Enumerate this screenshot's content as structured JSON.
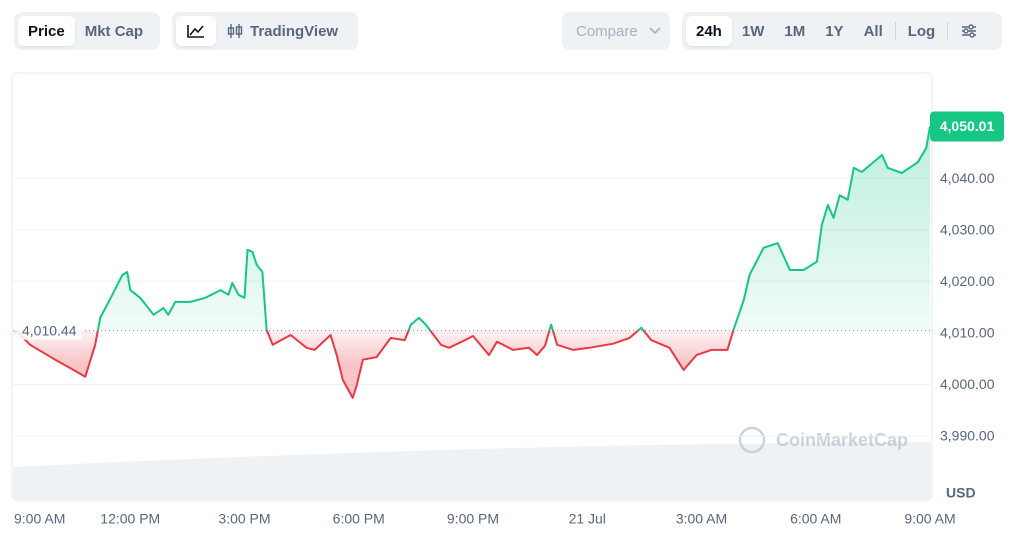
{
  "toolbar": {
    "price": "Price",
    "mkt_cap": "Mkt Cap",
    "tradingview": "TradingView",
    "compare": "Compare",
    "ranges": [
      "24h",
      "1W",
      "1M",
      "1Y",
      "All"
    ],
    "log": "Log"
  },
  "chart_data": {
    "type": "line",
    "watermark": "CoinMarketCap",
    "y_unit": "USD",
    "up_color": "#16c784",
    "down_color": "#ea3943",
    "baseline": {
      "value": 4010.44,
      "label": "4,010.44"
    },
    "last": {
      "value": 4050.01,
      "label": "4,050.01"
    },
    "x": [
      0,
      0.37,
      1.03,
      1.42,
      1.82,
      2.08,
      2.21,
      2.53,
      2.79,
      2.92,
      3.0,
      3.26,
      3.61,
      3.87,
      4.0,
      4.18,
      4.58,
      4.97,
      5.37,
      5.58,
      5.68,
      5.84,
      6.0,
      6.08,
      6.21,
      6.32,
      6.47,
      6.58,
      6.74,
      7.21,
      7.63,
      7.84,
      8.26,
      8.42,
      8.58,
      8.84,
      8.95,
      9.11,
      9.47,
      9.84,
      10.21,
      10.37,
      10.58,
      10.76,
      11.16,
      11.37,
      11.79,
      12.0,
      12.42,
      12.63,
      13.05,
      13.47,
      13.68,
      13.89,
      14.05,
      14.21,
      14.63,
      15.05,
      15.68,
      16.11,
      16.42,
      16.68,
      17.16,
      17.53,
      17.87,
      18.26,
      18.68,
      18.84,
      19.11,
      19.26,
      19.63,
      20.0,
      20.32,
      20.68,
      21.03,
      21.16,
      21.32,
      21.47,
      21.63,
      21.84,
      22.0,
      22.21,
      22.58,
      22.74,
      22.89,
      23.26,
      23.68,
      23.9,
      24
    ],
    "values": [
      4010.44,
      4007.7,
      4004.8,
      4003.2,
      4001.5,
      4007.7,
      4012.9,
      4017.4,
      4021.2,
      4021.8,
      4018.3,
      4016.8,
      4013.5,
      4014.8,
      4013.5,
      4016.0,
      4016.0,
      4016.8,
      4018.3,
      4017.4,
      4019.7,
      4017.4,
      4016.8,
      4026.1,
      4025.7,
      4023.2,
      4021.8,
      4010.6,
      4007.7,
      4009.6,
      4007.1,
      4006.7,
      4009.6,
      4005.7,
      4000.9,
      3997.4,
      3999.9,
      4004.8,
      4005.3,
      4009.0,
      4008.6,
      4011.6,
      4012.9,
      4011.6,
      4007.7,
      4007.1,
      4008.6,
      4009.4,
      4005.7,
      4008.3,
      4006.7,
      4007.1,
      4005.7,
      4007.5,
      4011.6,
      4007.7,
      4006.7,
      4007.1,
      4007.9,
      4009.0,
      4011.0,
      4008.6,
      4007.1,
      4002.8,
      4005.7,
      4006.7,
      4006.7,
      4010.6,
      4016.4,
      4021.2,
      4026.5,
      4027.4,
      4022.2,
      4022.2,
      4023.8,
      4030.9,
      4034.8,
      4032.3,
      4036.7,
      4035.8,
      4042.0,
      4041.2,
      4043.5,
      4044.5,
      4042.0,
      4041.0,
      4043.1,
      4045.8,
      4050.01
    ],
    "xlim": [
      0,
      24
    ],
    "xticks": [
      {
        "value": 0,
        "label": "9:00 AM"
      },
      {
        "value": 3,
        "label": "12:00 PM"
      },
      {
        "value": 6,
        "label": "3:00 PM"
      },
      {
        "value": 9,
        "label": "6:00 PM"
      },
      {
        "value": 12,
        "label": "9:00 PM"
      },
      {
        "value": 15,
        "label": "21 Jul"
      },
      {
        "value": 18,
        "label": "3:00 AM"
      },
      {
        "value": 21,
        "label": "6:00 AM"
      },
      {
        "value": 24,
        "label": "9:00 AM"
      }
    ],
    "ylim": [
      3977.6,
      4060
    ],
    "yticks": [
      {
        "value": 3990,
        "label": "3,990.00"
      },
      {
        "value": 4000,
        "label": "4,000.00"
      },
      {
        "value": 4010,
        "label": "4,010.00"
      },
      {
        "value": 4020,
        "label": "4,020.00"
      },
      {
        "value": 4030,
        "label": "4,030.00"
      },
      {
        "value": 4040,
        "label": "4,040.00"
      }
    ],
    "grid": true
  }
}
